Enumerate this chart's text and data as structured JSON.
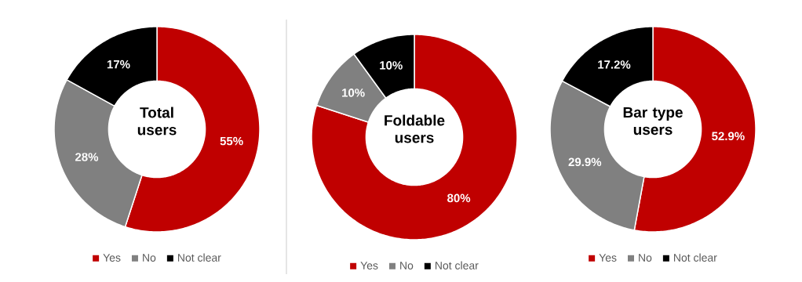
{
  "chart_data": [
    {
      "type": "donut",
      "title": "Total users",
      "categories": [
        "Yes",
        "No",
        "Not clear"
      ],
      "values": [
        55,
        28,
        17
      ],
      "colors": [
        "#c00000",
        "#808080",
        "#000000"
      ],
      "value_labels": [
        "55%",
        "28%",
        "17%"
      ],
      "legend": "bottom"
    },
    {
      "type": "donut",
      "title": "Foldable users",
      "categories": [
        "Yes",
        "No",
        "Not clear"
      ],
      "values": [
        80,
        10,
        10
      ],
      "colors": [
        "#c00000",
        "#808080",
        "#000000"
      ],
      "value_labels": [
        "80%",
        "10%",
        "10%"
      ],
      "legend": "bottom"
    },
    {
      "type": "donut",
      "title": "Bar type users",
      "categories": [
        "Yes",
        "No",
        "Not clear"
      ],
      "values": [
        52.9,
        29.9,
        17.2
      ],
      "colors": [
        "#c00000",
        "#808080",
        "#000000"
      ],
      "value_labels": [
        "52.9%",
        "29.9%",
        "17.2%"
      ],
      "legend": "bottom"
    }
  ]
}
